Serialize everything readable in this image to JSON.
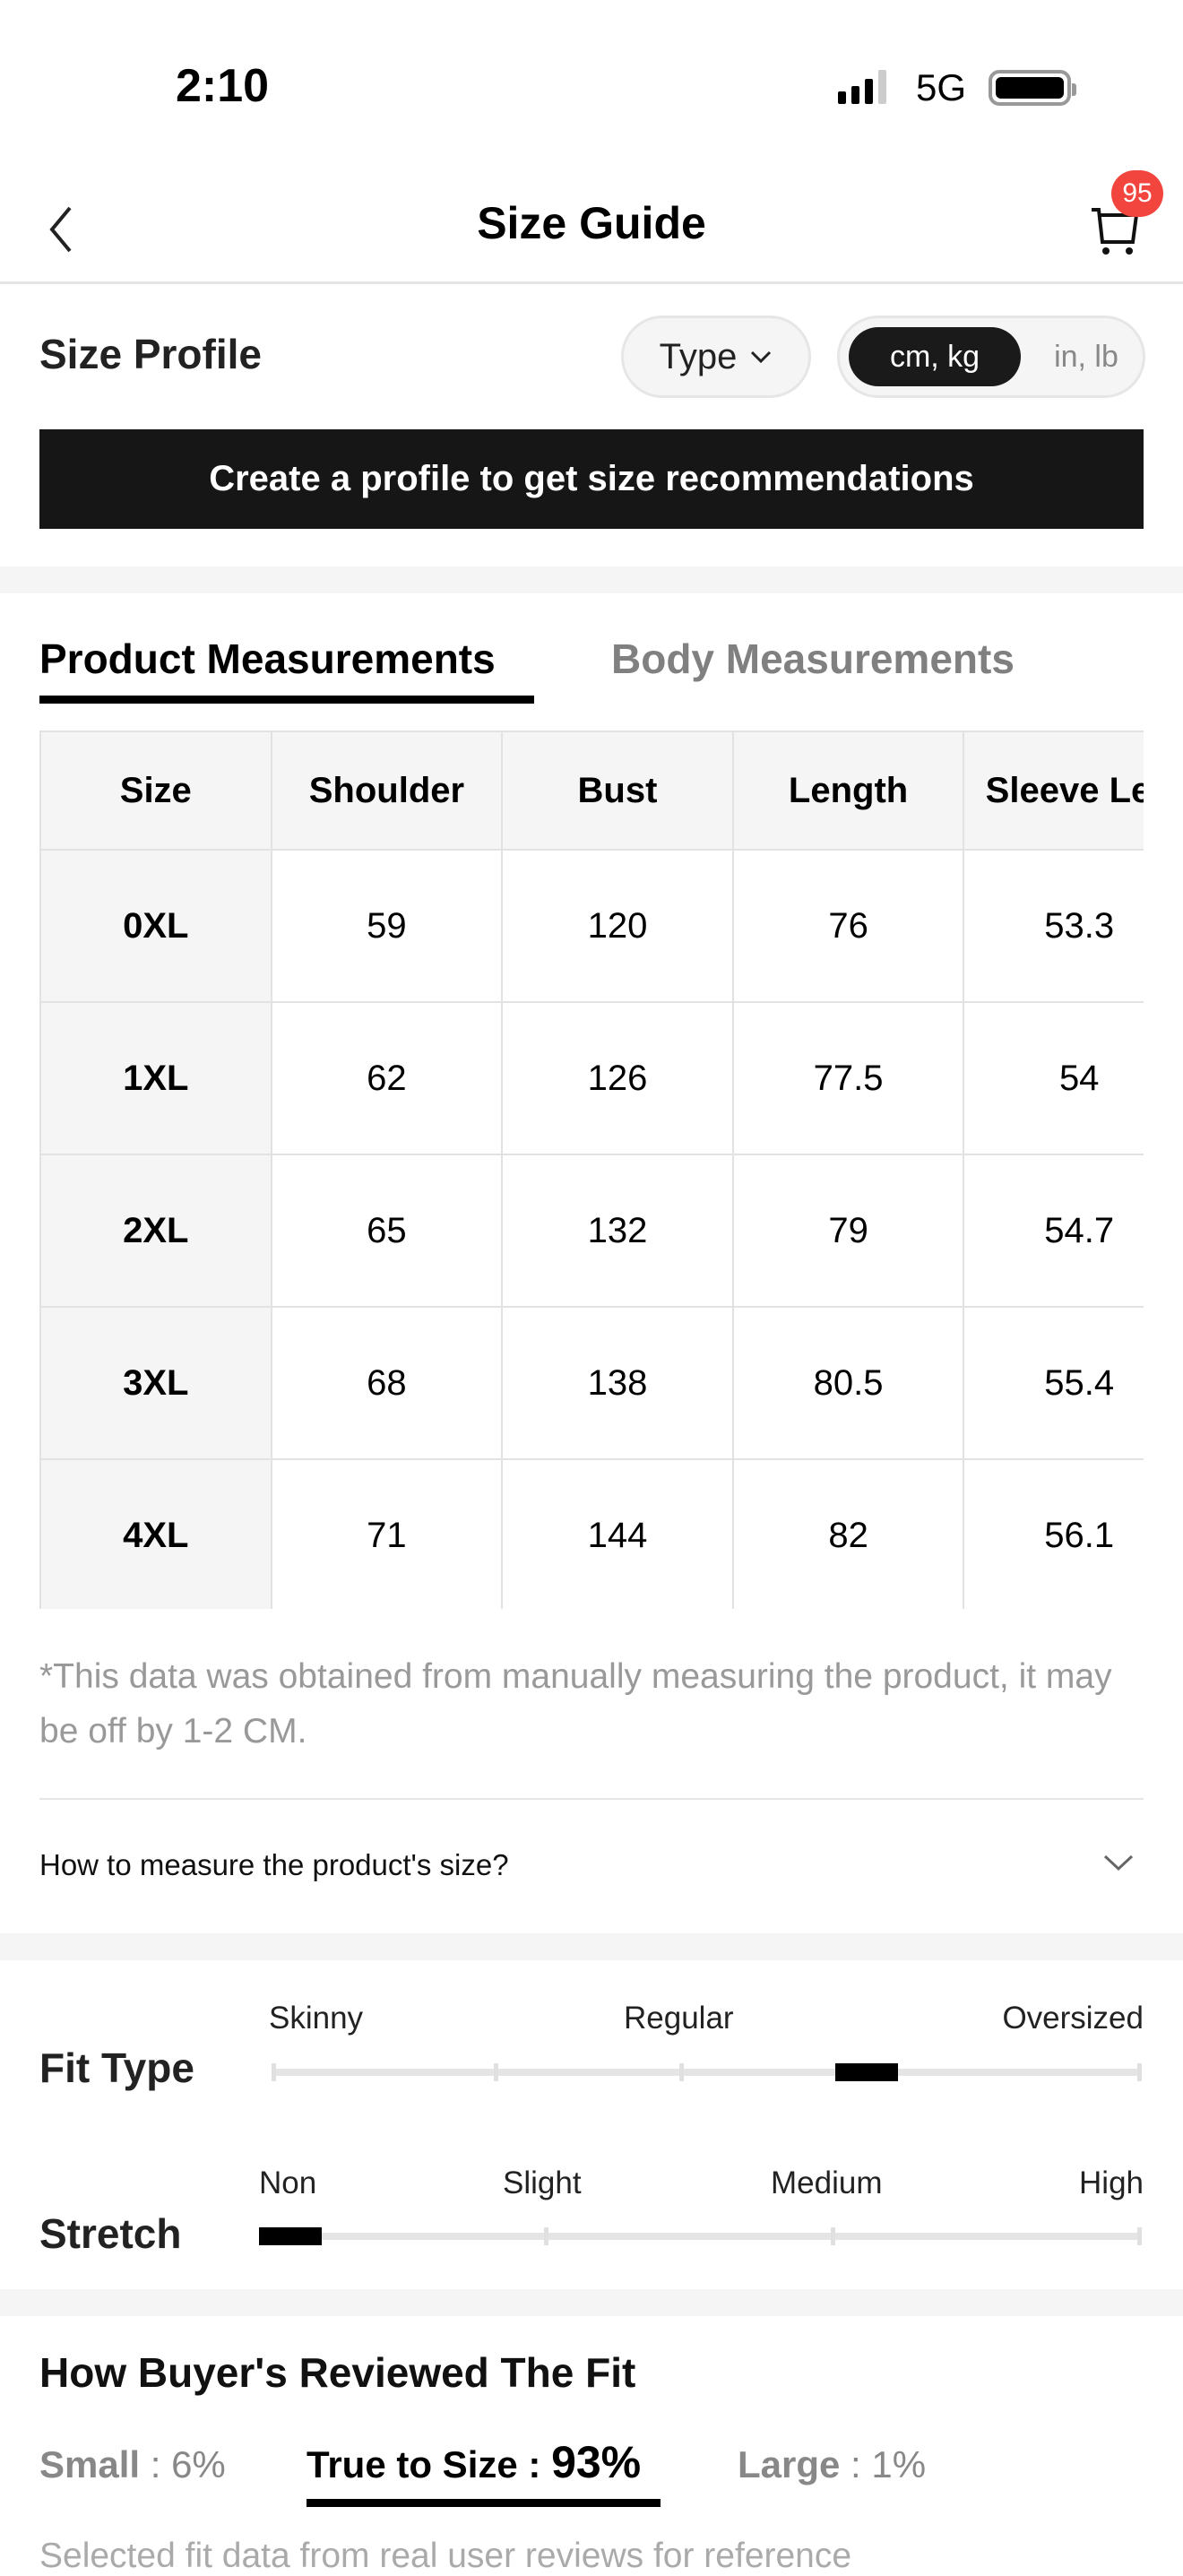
{
  "status_bar": {
    "time": "2:10",
    "network": "5G",
    "icons": [
      "signal-icon",
      "battery-icon"
    ]
  },
  "nav": {
    "title": "Size Guide",
    "cart_count": "95",
    "icons": [
      "chevron-left-icon",
      "cart-icon"
    ]
  },
  "size_profile": {
    "title": "Size Profile",
    "type_label": "Type",
    "units": [
      {
        "label": "cm, kg",
        "selected": true
      },
      {
        "label": "in, lb",
        "selected": false
      }
    ],
    "cta": "Create a profile to get size recommendations"
  },
  "tabs": [
    {
      "label": "Product Measurements",
      "active": true
    },
    {
      "label": "Body Measurements",
      "active": false
    }
  ],
  "table": {
    "headers": [
      "Size",
      "Shoulder",
      "Bust",
      "Length",
      "Sleeve Len"
    ],
    "rows": [
      [
        "0XL",
        "59",
        "120",
        "76",
        "53.3"
      ],
      [
        "1XL",
        "62",
        "126",
        "77.5",
        "54"
      ],
      [
        "2XL",
        "65",
        "132",
        "79",
        "54.7"
      ],
      [
        "3XL",
        "68",
        "138",
        "80.5",
        "55.4"
      ],
      [
        "4XL",
        "71",
        "144",
        "82",
        "56.1"
      ]
    ]
  },
  "note": "*This data was obtained from manually measuring the product, it may be off by 1-2 CM.",
  "how_to_measure": "How to measure the product's size?",
  "fit_type": {
    "label": "Fit Type",
    "scale": [
      "Skinny",
      "Regular",
      "Oversized"
    ],
    "value": "between Regular and Oversized"
  },
  "stretch": {
    "label": "Stretch",
    "scale": [
      "Non",
      "Slight",
      "Medium",
      "High"
    ],
    "value": "Non"
  },
  "reviews": {
    "title": "How Buyer's Reviewed The Fit",
    "small_label": "Small",
    "small_pct": "6%",
    "true_label": "True to Size",
    "true_pct": "93%",
    "large_label": "Large",
    "large_pct": "1%",
    "footnote": "Selected fit data from real user reviews for reference"
  },
  "colors": {
    "badge": "#f2453d",
    "primary": "#161616"
  }
}
